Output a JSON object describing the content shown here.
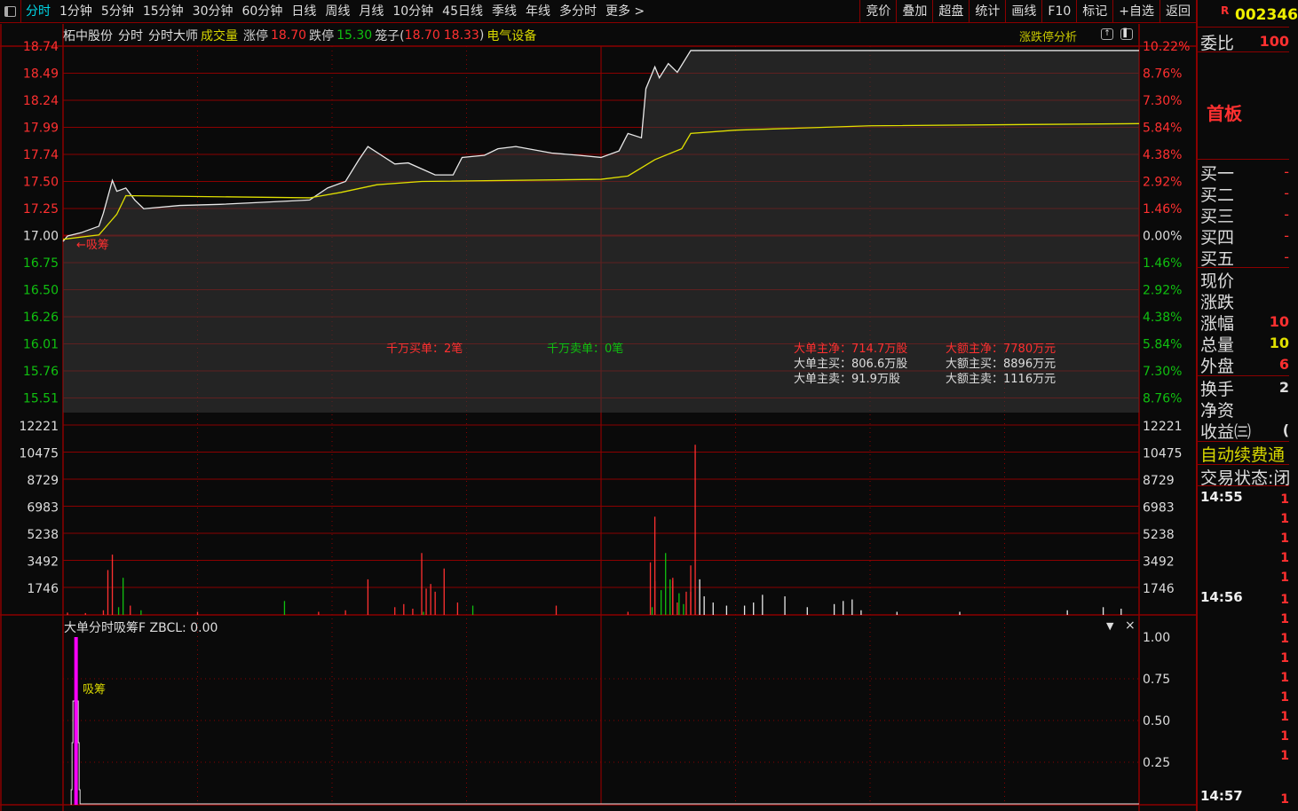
{
  "toolbar": {
    "tabs": [
      "分时",
      "1分钟",
      "5分钟",
      "15分钟",
      "30分钟",
      "60分钟",
      "日线",
      "周线",
      "月线",
      "10分钟",
      "45日线",
      "季线",
      "年线",
      "多分时",
      "更多 >"
    ],
    "active": "分时",
    "right": [
      "竞价",
      "叠加",
      "超盘",
      "统计",
      "画线",
      "F10",
      "标记",
      "+自选",
      "返回"
    ]
  },
  "info": {
    "name": "柘中股份",
    "mode": "分时",
    "tool": "分时大师",
    "indicator": "成交量",
    "limit_up_label": "涨停",
    "limit_up": "18.70",
    "limit_down_label": "跌停",
    "limit_down": "15.30",
    "cage_label": "笼子(",
    "cage_hi": "18.70",
    "cage_lo": "18.33",
    "cage_close": ")",
    "sector": "电气设备",
    "analysis": "涨跌停分析"
  },
  "axes": {
    "price_labels": [
      "18.74",
      "18.49",
      "18.24",
      "17.99",
      "17.74",
      "17.50",
      "17.25",
      "17.00",
      "16.75",
      "16.50",
      "16.26",
      "16.01",
      "15.76",
      "15.51"
    ],
    "pct_labels": [
      "10.22%",
      "8.76%",
      "7.30%",
      "5.84%",
      "4.38%",
      "2.92%",
      "1.46%",
      "0.00%",
      "1.46%",
      "2.92%",
      "4.38%",
      "5.84%",
      "7.30%",
      "8.76%"
    ],
    "vol_labels": [
      "12221",
      "10475",
      "8729",
      "6983",
      "5238",
      "3492",
      "1746"
    ],
    "ind_labels": [
      "1.00",
      "0.75",
      "0.50",
      "0.25"
    ]
  },
  "colors": {
    "up": "#ff3030",
    "down": "#10c010",
    "price_line": "#e8e8e8",
    "avg_line": "#e0e000",
    "grid": "#8b0000",
    "signal": "#ff00ff"
  },
  "chart_data": {
    "type": "line",
    "prev_close": 17.0,
    "ylim": [
      15.3,
      18.74
    ],
    "x_minutes": [
      0,
      240
    ],
    "price": [
      [
        0,
        16.95
      ],
      [
        1,
        17.0
      ],
      [
        4,
        17.03
      ],
      [
        8,
        17.09
      ],
      [
        9,
        17.21
      ],
      [
        11,
        17.51
      ],
      [
        12,
        17.41
      ],
      [
        14,
        17.44
      ],
      [
        16,
        17.33
      ],
      [
        18,
        17.25
      ],
      [
        26,
        17.28
      ],
      [
        35,
        17.29
      ],
      [
        45,
        17.31
      ],
      [
        55,
        17.33
      ],
      [
        59,
        17.44
      ],
      [
        63,
        17.5
      ],
      [
        66,
        17.7
      ],
      [
        68,
        17.82
      ],
      [
        71,
        17.74
      ],
      [
        74,
        17.66
      ],
      [
        77,
        17.67
      ],
      [
        83,
        17.56
      ],
      [
        87,
        17.56
      ],
      [
        89,
        17.72
      ],
      [
        94,
        17.74
      ],
      [
        97,
        17.8
      ],
      [
        101,
        17.82
      ],
      [
        109,
        17.76
      ],
      [
        115,
        17.74
      ],
      [
        120,
        17.72
      ],
      [
        124,
        17.78
      ],
      [
        126,
        17.94
      ],
      [
        129,
        17.9
      ],
      [
        130,
        18.35
      ],
      [
        132,
        18.55
      ],
      [
        133,
        18.45
      ],
      [
        135,
        18.58
      ],
      [
        137,
        18.5
      ],
      [
        140,
        18.7
      ],
      [
        240,
        18.7
      ]
    ],
    "avg": [
      [
        0,
        16.97
      ],
      [
        8,
        17.01
      ],
      [
        12,
        17.2
      ],
      [
        14,
        17.37
      ],
      [
        55,
        17.35
      ],
      [
        62,
        17.4
      ],
      [
        70,
        17.47
      ],
      [
        80,
        17.5
      ],
      [
        120,
        17.52
      ],
      [
        126,
        17.55
      ],
      [
        132,
        17.7
      ],
      [
        138,
        17.8
      ],
      [
        140,
        17.94
      ],
      [
        150,
        17.97
      ],
      [
        180,
        18.01
      ],
      [
        240,
        18.03
      ]
    ],
    "volume": [
      [
        1,
        150,
        "u"
      ],
      [
        5,
        120,
        "u"
      ],
      [
        9,
        300,
        "u"
      ],
      [
        10,
        2900,
        "u"
      ],
      [
        11,
        3900,
        "u"
      ],
      [
        12,
        500,
        "d"
      ],
      [
        13,
        2400,
        "d"
      ],
      [
        15,
        600,
        "u"
      ],
      [
        17,
        300,
        "d"
      ],
      [
        30,
        200,
        "u"
      ],
      [
        49,
        900,
        "d"
      ],
      [
        57,
        200,
        "u"
      ],
      [
        63,
        300,
        "u"
      ],
      [
        68,
        2300,
        "u"
      ],
      [
        74,
        500,
        "u"
      ],
      [
        76,
        700,
        "u"
      ],
      [
        78,
        400,
        "u"
      ],
      [
        80,
        200,
        "d"
      ],
      [
        80,
        4000,
        "u"
      ],
      [
        81,
        1700,
        "u"
      ],
      [
        82,
        2000,
        "u"
      ],
      [
        83,
        1500,
        "u"
      ],
      [
        85,
        3000,
        "u"
      ],
      [
        88,
        800,
        "u"
      ],
      [
        91,
        600,
        "d"
      ],
      [
        110,
        600,
        "u"
      ],
      [
        126,
        200,
        "u"
      ],
      [
        131,
        3400,
        "u"
      ],
      [
        132,
        2200,
        "u"
      ],
      [
        136,
        2200,
        "u"
      ],
      [
        137,
        800,
        "u"
      ],
      [
        140,
        1500,
        "u"
      ],
      [
        131,
        500,
        "d"
      ],
      [
        132,
        6350,
        "u"
      ],
      [
        133,
        1600,
        "d"
      ],
      [
        134,
        4000,
        "d"
      ],
      [
        135,
        2300,
        "d"
      ],
      [
        136,
        2400,
        "u"
      ],
      [
        137,
        1400,
        "d"
      ],
      [
        138,
        700,
        "d"
      ],
      [
        139,
        1500,
        "u"
      ],
      [
        140,
        3200,
        "u"
      ],
      [
        141,
        11000,
        "u"
      ],
      [
        142,
        2300,
        "w"
      ],
      [
        143,
        1200,
        "w"
      ],
      [
        145,
        800,
        "w"
      ],
      [
        148,
        600,
        "w"
      ],
      [
        152,
        600,
        "w"
      ],
      [
        154,
        800,
        "w"
      ],
      [
        156,
        1300,
        "w"
      ],
      [
        161,
        1200,
        "w"
      ],
      [
        166,
        500,
        "w"
      ],
      [
        172,
        700,
        "w"
      ],
      [
        174,
        900,
        "w"
      ],
      [
        176,
        1000,
        "w"
      ],
      [
        178,
        300,
        "w"
      ],
      [
        186,
        200,
        "w"
      ],
      [
        200,
        200,
        "w"
      ],
      [
        224,
        300,
        "w"
      ],
      [
        232,
        500,
        "w"
      ],
      [
        236,
        400,
        "w"
      ]
    ],
    "indicator": {
      "name": "大单分时吸筹F",
      "param": "ZBCL: 0.00",
      "signal_label": "吸筹",
      "signal_minute": 3,
      "signal_value": 1.0,
      "ylim": [
        0,
        1.1
      ]
    }
  },
  "annotations": {
    "absorb_arrow": "←吸筹",
    "big_buy": "千万买单：2笔",
    "big_sell": "千万卖单：0笔",
    "stats": [
      [
        "大单主净：714.7万股",
        "大额主净：7780万元"
      ],
      [
        "大单主买：806.6万股",
        "大额主买：8896万元"
      ],
      [
        "大单主卖：91.9万股",
        "大额主卖：1116万元"
      ]
    ]
  },
  "right_panel": {
    "flag": "R",
    "code": "002346",
    "ratio_label": "委比",
    "ratio_value": "100",
    "board": "首板",
    "bids": [
      "买一",
      "买二",
      "买三",
      "买四",
      "买五"
    ],
    "quote": [
      {
        "label": "现价",
        "value": ""
      },
      {
        "label": "涨跌",
        "value": ""
      },
      {
        "label": "涨幅",
        "value": "10"
      },
      {
        "label": "总量",
        "value": "10"
      },
      {
        "label": "外盘",
        "value": "6"
      }
    ],
    "misc": [
      {
        "label": "换手",
        "value": "2"
      },
      {
        "label": "净资",
        "value": ""
      },
      {
        "label": "收益㈢",
        "value": "("
      }
    ],
    "renew": "自动续费通",
    "status": "交易状态:闭",
    "times": [
      "14:55",
      "14:56",
      "14:57"
    ]
  }
}
